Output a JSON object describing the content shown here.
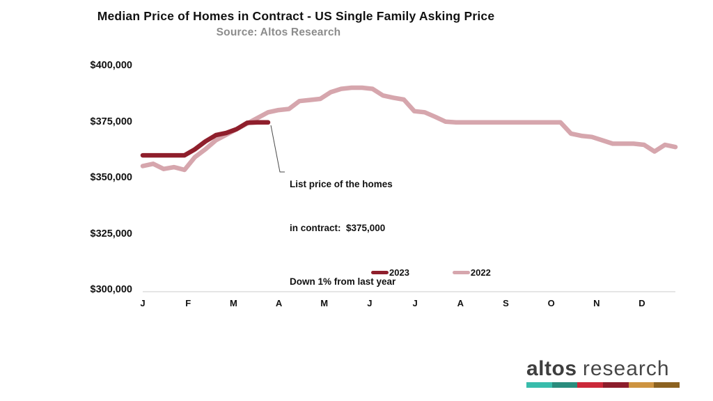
{
  "title": "Median Price of Homes in Contract - US Single Family Asking Price",
  "subtitle": "Source: Altos Research",
  "annotation": {
    "line1": "List price of the homes",
    "line2": "in contract:  $375,000",
    "line3": "Down 1% from last year"
  },
  "legend": [
    {
      "label": "2023",
      "color": "#8f1f2c"
    },
    {
      "label": "2022",
      "color": "#d6a6ad"
    }
  ],
  "logo": {
    "word1": "altos",
    "word2": "research",
    "bar_colors": [
      "#38bcab",
      "#2a8c7d",
      "#cb2839",
      "#8c1d2b",
      "#cd9340",
      "#8c6220"
    ]
  },
  "chart_data": {
    "type": "line",
    "title": "Median Price of Homes in Contract - US Single Family Asking Price",
    "subtitle": "Source: Altos Research",
    "xlabel": "",
    "ylabel": "",
    "x_axis": {
      "tick_labels": [
        "J",
        "F",
        "M",
        "A",
        "M",
        "J",
        "J",
        "A",
        "S",
        "O",
        "N",
        "D"
      ],
      "unit": "month (weekly data points)"
    },
    "y_axis": {
      "tick_labels": [
        "$400,000",
        "$375,000",
        "$350,000",
        "$325,000",
        "$300,000"
      ],
      "tick_values": [
        400000,
        375000,
        350000,
        325000,
        300000
      ],
      "min": 300000,
      "max": 400000
    },
    "grid": "single light baseline at $300,000 only",
    "legend_position": "bottom-center-inside",
    "series": [
      {
        "name": "2022",
        "color": "#d6a6ad",
        "values": [
          355500,
          356500,
          354200,
          355000,
          353800,
          359500,
          363000,
          367000,
          369500,
          372000,
          374500,
          377000,
          379500,
          380500,
          381000,
          384500,
          385000,
          385500,
          388500,
          390000,
          390500,
          390500,
          390000,
          387000,
          386000,
          385200,
          380000,
          379500,
          377500,
          375300,
          375000,
          375000,
          375000,
          375000,
          375000,
          375000,
          375000,
          375000,
          375000,
          375000,
          375000,
          370000,
          369000,
          368500,
          367000,
          365500,
          365500,
          365500,
          365000,
          362000,
          365000,
          364000
        ]
      },
      {
        "name": "2023",
        "color": "#8f1f2c",
        "values": [
          360300,
          360300,
          360300,
          360300,
          360300,
          363000,
          366500,
          369300,
          370300,
          372000,
          374800,
          375000,
          375000
        ]
      }
    ],
    "callout": {
      "attached_to": "last point of 2023 series",
      "value": 375000,
      "text": [
        "List price of the homes",
        "in contract:  $375,000",
        "Down 1% from last year"
      ]
    }
  }
}
